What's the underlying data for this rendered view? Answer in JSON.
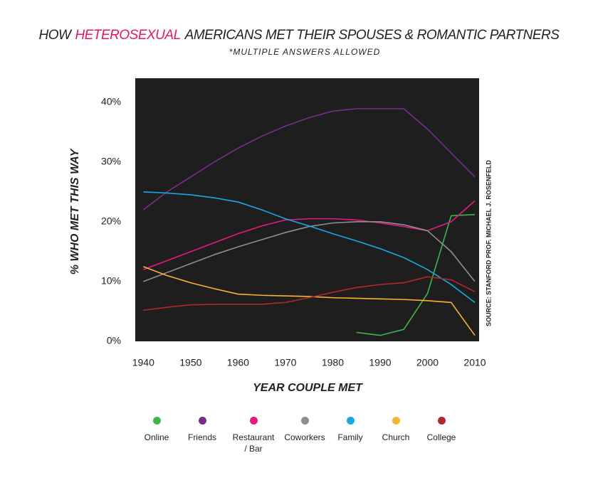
{
  "chart_data": {
    "type": "line",
    "title": [
      "HOW",
      "HETEROSEXUAL",
      "AMERICANS MET THEIR SPOUSES & ROMANTIC PARTNERS"
    ],
    "subtitle": "*MULTIPLE ANSWERS ALLOWED",
    "x_label": "YEAR COUPLE MET",
    "y_label": "% WHO MET THIS WAY",
    "source": "SOURCE:  STANFORD PROF. MICHAEL J. ROSENFELD",
    "x": [
      1940,
      1945,
      1950,
      1955,
      1960,
      1965,
      1970,
      1975,
      1980,
      1985,
      1990,
      1995,
      2000,
      2005,
      2010
    ],
    "xlim": [
      1938.3,
      2010.9
    ],
    "xticks": [
      1940,
      1950,
      1960,
      1970,
      1980,
      1990,
      2000,
      2010
    ],
    "ylim": [
      0,
      44
    ],
    "yticks": [
      {
        "value": 0,
        "label": "0%"
      },
      {
        "value": 10,
        "label": "10%"
      },
      {
        "value": 20,
        "label": "20%"
      },
      {
        "value": 30,
        "label": "30%"
      },
      {
        "value": 40,
        "label": "40%"
      }
    ],
    "series": [
      {
        "name": "Online",
        "color": "#3db54a",
        "values": [
          null,
          null,
          null,
          null,
          null,
          null,
          null,
          null,
          null,
          1.5,
          1.0,
          2.0,
          8.0,
          21.0,
          21.2
        ]
      },
      {
        "name": "Friends",
        "color": "#7b2c8e",
        "values": [
          22,
          25,
          27.5,
          30,
          32.3,
          34.3,
          36,
          37.4,
          38.5,
          38.9,
          38.9,
          38.9,
          35.5,
          31.5,
          27.5
        ]
      },
      {
        "name": "Restaurant / Bar",
        "color": "#e5197f",
        "values": [
          12,
          13.5,
          15,
          16.5,
          18,
          19.3,
          20.3,
          20.5,
          20.5,
          20.3,
          19.8,
          19.2,
          18.5,
          20,
          23.5
        ]
      },
      {
        "name": "Coworkers",
        "color": "#8e8e8e",
        "values": [
          10,
          11.5,
          13,
          14.5,
          15.8,
          17,
          18.2,
          19.2,
          19.8,
          20,
          20,
          19.5,
          18.5,
          15,
          10
        ]
      },
      {
        "name": "Family",
        "color": "#19a8e0",
        "values": [
          25,
          24.8,
          24.5,
          24,
          23.3,
          22,
          20.5,
          19.3,
          18,
          16.8,
          15.5,
          14,
          12,
          9.5,
          6.5
        ]
      },
      {
        "name": "Church",
        "color": "#f6b431",
        "values": [
          12.5,
          11,
          9.8,
          8.8,
          7.9,
          7.7,
          7.6,
          7.5,
          7.3,
          7.2,
          7.1,
          7,
          6.8,
          6.5,
          1
        ]
      },
      {
        "name": "College",
        "color": "#b3282d",
        "values": [
          5.2,
          5.7,
          6.1,
          6.2,
          6.2,
          6.2,
          6.5,
          7.3,
          8.2,
          9,
          9.5,
          9.8,
          10.8,
          10.3,
          8.3
        ]
      }
    ]
  }
}
